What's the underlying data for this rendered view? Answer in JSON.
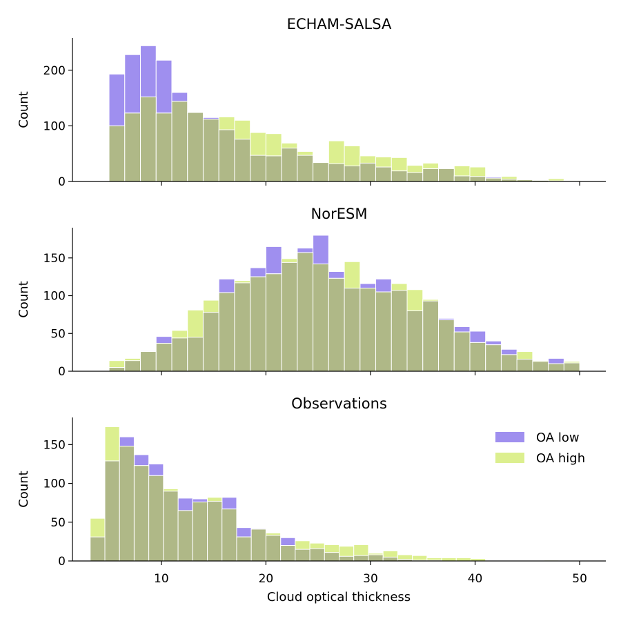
{
  "figure": {
    "xlabel": "Cloud optical thickness"
  },
  "colors": {
    "oa_low": "#9f8fef",
    "oa_high": "#dcef8f",
    "overlap": "#afb887"
  },
  "chart_data": [
    {
      "type": "histogram",
      "title": "ECHAM-SALSA",
      "xlabel": "",
      "ylabel": "Count",
      "xlim": [
        1.5,
        52.5
      ],
      "ylim": [
        0,
        258
      ],
      "xticks": [
        10,
        20,
        30,
        40,
        50
      ],
      "show_xticklabels": false,
      "yticks": [
        0,
        100,
        200
      ],
      "bin_start": 5.0,
      "bin_width": 1.5,
      "series": [
        {
          "name": "OA low",
          "values": [
            193,
            228,
            244,
            218,
            160,
            125,
            115,
            93,
            76,
            47,
            46,
            60,
            47,
            34,
            32,
            28,
            33,
            26,
            19,
            16,
            23,
            23,
            10,
            9,
            8,
            4,
            3,
            2,
            1,
            1
          ]
        },
        {
          "name": "OA high",
          "values": [
            100,
            123,
            152,
            123,
            144,
            124,
            112,
            116,
            110,
            88,
            86,
            69,
            54,
            34,
            73,
            64,
            46,
            44,
            43,
            29,
            33,
            23,
            28,
            26,
            6,
            9,
            4,
            3,
            5,
            2
          ]
        }
      ]
    },
    {
      "type": "histogram",
      "title": "NorESM",
      "xlabel": "",
      "ylabel": "Count",
      "xlim": [
        1.5,
        52.5
      ],
      "ylim": [
        0,
        190
      ],
      "xticks": [
        10,
        20,
        30,
        40,
        50
      ],
      "show_xticklabels": false,
      "yticks": [
        0,
        50,
        100,
        150
      ],
      "bin_start": 5.0,
      "bin_width": 1.5,
      "series": [
        {
          "name": "OA low",
          "values": [
            5,
            14,
            27,
            46,
            44,
            45,
            78,
            122,
            117,
            137,
            165,
            144,
            163,
            180,
            132,
            110,
            116,
            122,
            107,
            80,
            93,
            70,
            59,
            53,
            40,
            29,
            16,
            13,
            17,
            11
          ]
        },
        {
          "name": "OA high",
          "values": [
            14,
            17,
            26,
            37,
            54,
            81,
            94,
            104,
            120,
            125,
            129,
            149,
            157,
            142,
            123,
            145,
            110,
            105,
            116,
            108,
            95,
            68,
            52,
            38,
            35,
            22,
            26,
            14,
            10,
            13
          ]
        }
      ]
    },
    {
      "type": "histogram",
      "title": "Observations",
      "xlabel": "Cloud optical thickness",
      "ylabel": "Count",
      "xlim": [
        1.5,
        52.5
      ],
      "ylim": [
        0,
        185
      ],
      "xticks": [
        10,
        20,
        30,
        40,
        50
      ],
      "show_xticklabels": true,
      "yticks": [
        0,
        50,
        100,
        150
      ],
      "bin_start": 3.2,
      "bin_width": 1.4,
      "legend": {
        "position": "upper-right",
        "entries": [
          "OA low",
          "OA high"
        ]
      },
      "series": [
        {
          "name": "OA low",
          "values": [
            31,
            129,
            160,
            137,
            125,
            90,
            81,
            80,
            77,
            82,
            43,
            42,
            33,
            30,
            15,
            16,
            11,
            6,
            7,
            8,
            5,
            2,
            1,
            1,
            0,
            0,
            0,
            0,
            0,
            0,
            0,
            0,
            0,
            0,
            0
          ]
        },
        {
          "name": "OA high",
          "values": [
            55,
            173,
            148,
            123,
            110,
            93,
            65,
            76,
            82,
            67,
            31,
            41,
            36,
            20,
            26,
            23,
            21,
            19,
            21,
            10,
            13,
            8,
            7,
            4,
            4,
            4,
            3,
            0,
            0,
            0,
            0,
            1,
            0,
            0,
            0
          ]
        }
      ]
    }
  ]
}
